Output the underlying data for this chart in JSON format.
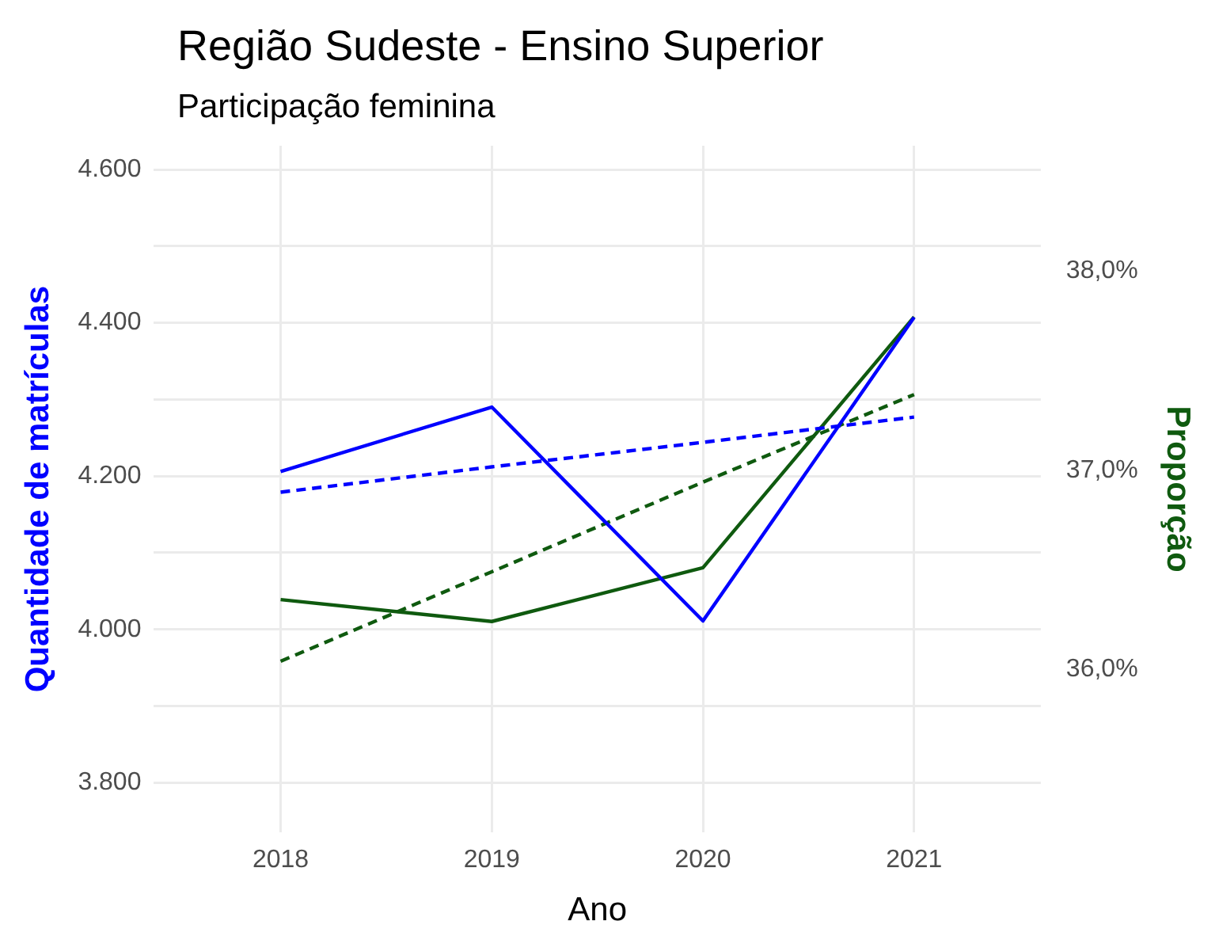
{
  "chart_data": {
    "type": "line",
    "title": "Região Sudeste - Ensino Superior",
    "subtitle": "Participação feminina",
    "xlabel": "Ano",
    "ylabel": "Quantidade de matrículas",
    "y2label": "Proporção",
    "x": [
      2018,
      2019,
      2020,
      2021
    ],
    "xlim": [
      2017.4,
      2021.6
    ],
    "xticks": [
      2018,
      2019,
      2020,
      2021
    ],
    "ylim": [
      3735,
      4631
    ],
    "yticks": [
      {
        "value": 3800,
        "label": "3.800"
      },
      {
        "value": 3900,
        "label": null
      },
      {
        "value": 4000,
        "label": "4.000"
      },
      {
        "value": 4100,
        "label": null
      },
      {
        "value": 4200,
        "label": "4.200"
      },
      {
        "value": 4300,
        "label": null
      },
      {
        "value": 4400,
        "label": "4.400"
      },
      {
        "value": 4500,
        "label": null
      },
      {
        "value": 4600,
        "label": "4.600"
      }
    ],
    "y2lim": [
      35.18,
      38.63
    ],
    "y2ticks": [
      {
        "value": 36,
        "label": "36,0%"
      },
      {
        "value": 37,
        "label": "37,0%"
      },
      {
        "value": 38,
        "label": "38,0%"
      }
    ],
    "series": [
      {
        "color": "#0000ff",
        "values": [
          4206,
          4290,
          4011,
          4407
        ],
        "line_style": "solid"
      },
      {
        "color": "#0000ff",
        "values": [
          4179,
          4212,
          4244,
          4277
        ],
        "line_style": "dashed"
      },
      {
        "color": "#0f5a0f",
        "axis": "y2",
        "values": [
          36.35,
          36.24,
          36.51,
          37.77
        ],
        "line_style": "solid"
      },
      {
        "color": "#0f5a0f",
        "axis": "y2",
        "values": [
          36.04,
          36.49,
          36.94,
          37.38
        ],
        "line_style": "dashed"
      }
    ],
    "grid": true,
    "legend": false,
    "marker": "none"
  }
}
